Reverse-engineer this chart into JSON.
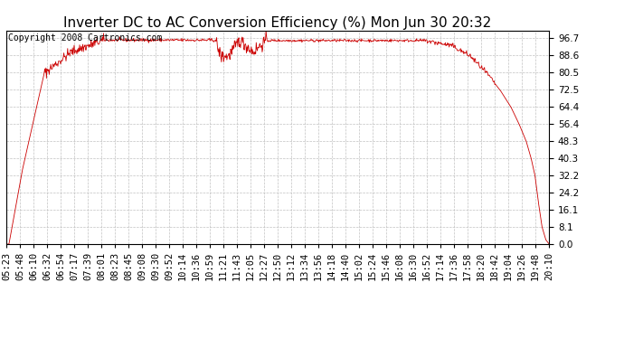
{
  "title": "Inverter DC to AC Conversion Efficiency (%) Mon Jun 30 20:32",
  "copyright_text": "Copyright 2008 Cartronics.com",
  "line_color": "#cc0000",
  "background_color": "#ffffff",
  "plot_bg_color": "#ffffff",
  "grid_color": "#bbbbbb",
  "grid_style": "--",
  "yticks": [
    0.0,
    8.1,
    16.1,
    24.2,
    32.2,
    40.3,
    48.3,
    56.4,
    64.4,
    72.5,
    80.5,
    88.6,
    96.7
  ],
  "ylim": [
    0.0,
    100.0
  ],
  "xtick_labels": [
    "05:23",
    "05:48",
    "06:10",
    "06:32",
    "06:54",
    "07:17",
    "07:39",
    "08:01",
    "08:23",
    "08:45",
    "09:08",
    "09:30",
    "09:52",
    "10:14",
    "10:36",
    "10:59",
    "11:21",
    "11:43",
    "12:05",
    "12:27",
    "12:50",
    "13:12",
    "13:34",
    "13:56",
    "14:18",
    "14:40",
    "15:02",
    "15:24",
    "15:46",
    "16:08",
    "16:30",
    "16:52",
    "17:14",
    "17:36",
    "17:58",
    "18:20",
    "18:42",
    "19:04",
    "19:26",
    "19:48",
    "20:10"
  ],
  "title_fontsize": 11,
  "tick_fontsize": 7.5,
  "copyright_fontsize": 7
}
